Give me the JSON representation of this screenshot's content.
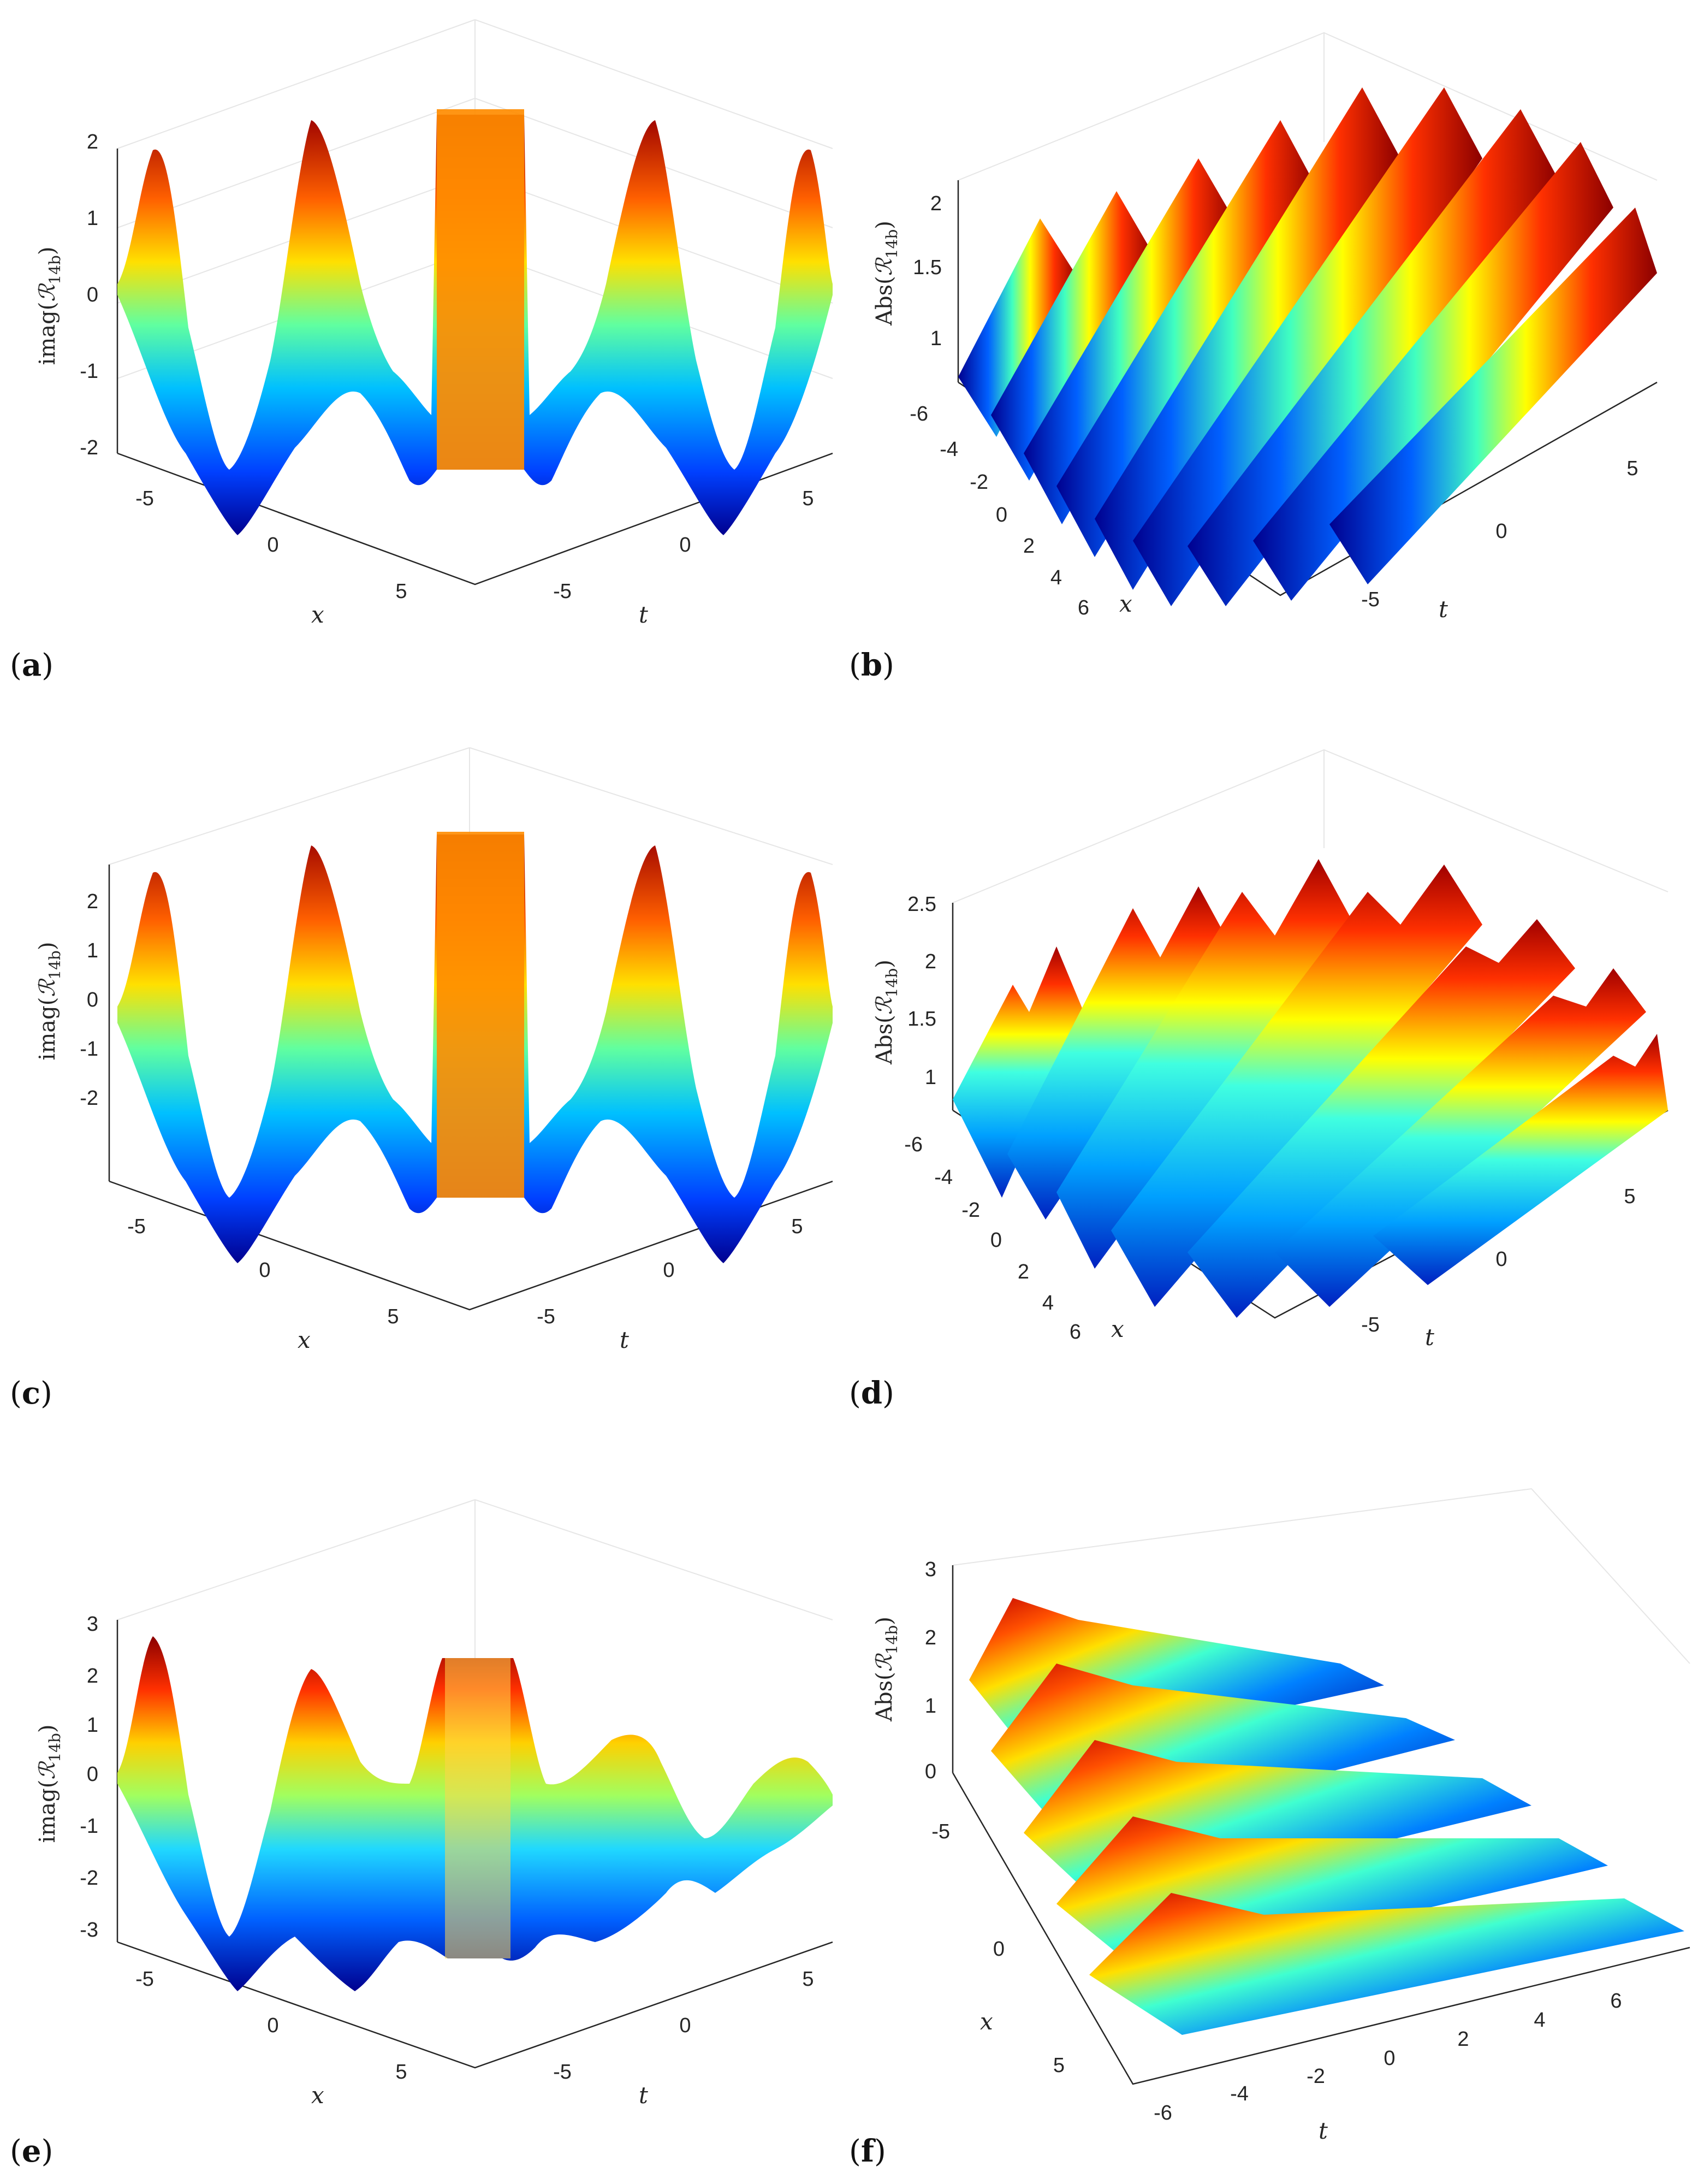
{
  "panels": [
    {
      "label_open": "(",
      "label_letter": "a",
      "label_close": ")",
      "chart_data": {
        "type": "surface",
        "zlabel": "imag(ℛ14b)",
        "zlabel_text": "imag(",
        "zlabel_sym": "ℛ",
        "zlabel_sub": "14b",
        "zlabel_close": ")",
        "xlabel": "x",
        "ylabel": "t",
        "xticks": [
          "-5",
          "0",
          "5"
        ],
        "yticks": [
          "-5",
          "0",
          "5"
        ],
        "zticks": [
          "-2",
          "-1",
          "0",
          "1",
          "2"
        ],
        "zlim": [
          -2.3,
          2.3
        ],
        "xlim": [
          -7,
          7
        ],
        "ylim": [
          -7,
          7
        ],
        "view": "oblique",
        "colormap": "jet",
        "grid": true
      }
    },
    {
      "label_open": "(",
      "label_letter": "b",
      "label_close": ")",
      "chart_data": {
        "type": "surface",
        "zlabel": "Abs(ℛ14b)",
        "zlabel_text": "Abs(",
        "zlabel_sym": "ℛ",
        "zlabel_sub": "14b",
        "zlabel_close": ")",
        "xlabel": "x",
        "ylabel": "t",
        "xticks": [
          "-6",
          "-4",
          "-2",
          "0",
          "2",
          "4",
          "6"
        ],
        "yticks": [
          "-5",
          "0",
          "5"
        ],
        "zticks": [
          "1",
          "1.5",
          "2"
        ],
        "zlim": [
          0.75,
          2.2
        ],
        "xlim": [
          -7,
          7
        ],
        "ylim": [
          -7,
          7
        ],
        "view": "diagonal",
        "colormap": "jet",
        "grid": true
      }
    },
    {
      "label_open": "(",
      "label_letter": "c",
      "label_close": ")",
      "chart_data": {
        "type": "surface",
        "zlabel": "imag(ℛ14b)",
        "zlabel_text": "imag(",
        "zlabel_sym": "ℛ",
        "zlabel_sub": "14b",
        "zlabel_close": ")",
        "xlabel": "x",
        "ylabel": "t",
        "xticks": [
          "-5",
          "0",
          "5"
        ],
        "yticks": [
          "-5",
          "0",
          "5"
        ],
        "zticks": [
          "-2",
          "-1",
          "0",
          "1",
          "2"
        ],
        "zlim": [
          -2.4,
          2.4
        ],
        "xlim": [
          -7,
          7
        ],
        "ylim": [
          -7,
          7
        ],
        "view": "oblique",
        "colormap": "jet",
        "grid": true
      }
    },
    {
      "label_open": "(",
      "label_letter": "d",
      "label_close": ")",
      "chart_data": {
        "type": "surface",
        "zlabel": "Abs(ℛ14b)",
        "zlabel_text": "Abs(",
        "zlabel_sym": "ℛ",
        "zlabel_sub": "14b",
        "zlabel_close": ")",
        "xlabel": "x",
        "ylabel": "t",
        "xticks": [
          "-6",
          "-4",
          "-2",
          "0",
          "2",
          "4",
          "6"
        ],
        "yticks": [
          "-5",
          "0",
          "5"
        ],
        "zticks": [
          "1",
          "1.5",
          "2",
          "2.5"
        ],
        "zlim": [
          0.75,
          2.7
        ],
        "xlim": [
          -7,
          7
        ],
        "ylim": [
          -7,
          7
        ],
        "view": "diagonal",
        "colormap": "jet",
        "grid": true
      }
    },
    {
      "label_open": "(",
      "label_letter": "e",
      "label_close": ")",
      "chart_data": {
        "type": "surface",
        "zlabel": "imag(ℛ14b)",
        "zlabel_text": "imag(",
        "zlabel_sym": "ℛ",
        "zlabel_sub": "14b",
        "zlabel_close": ")",
        "xlabel": "x",
        "ylabel": "t",
        "xticks": [
          "-5",
          "0",
          "5"
        ],
        "yticks": [
          "-5",
          "0",
          "5"
        ],
        "zticks": [
          "-3",
          "-2",
          "-1",
          "0",
          "1",
          "2",
          "3"
        ],
        "zlim": [
          -3.2,
          3.2
        ],
        "xlim": [
          -7,
          7
        ],
        "ylim": [
          -7,
          7
        ],
        "view": "oblique",
        "colormap": "jet",
        "grid": true
      }
    },
    {
      "label_open": "(",
      "label_letter": "f",
      "label_close": ")",
      "chart_data": {
        "type": "surface",
        "zlabel": "Abs(ℛ14b)",
        "zlabel_text": "Abs(",
        "zlabel_sym": "ℛ",
        "zlabel_sub": "14b",
        "zlabel_close": ")",
        "xlabel": "x",
        "ylabel": "t",
        "xticks": [
          "-5",
          "0",
          "5"
        ],
        "yticks": [
          "-6",
          "-4",
          "-2",
          "0",
          "2",
          "4",
          "6"
        ],
        "zticks": [
          "0",
          "1",
          "2",
          "3"
        ],
        "zlim": [
          0,
          3
        ],
        "xlim": [
          -7,
          7
        ],
        "ylim": [
          -7,
          7
        ],
        "view": "top",
        "colormap": "jet",
        "grid": true
      }
    }
  ]
}
